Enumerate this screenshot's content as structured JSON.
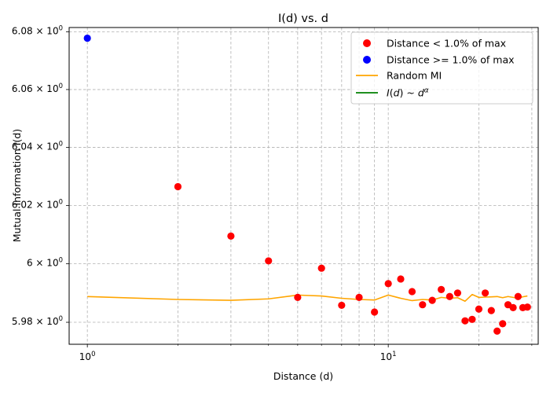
{
  "chart_data": {
    "type": "scatter",
    "title": "I(d) vs. d",
    "xlabel": "Distance (d)",
    "ylabel": "Mutual Information I(d)",
    "x_scale": "log",
    "y_scale": "log",
    "xlim": [
      0.87,
      31.5
    ],
    "ylim": [
      5.9725,
      6.0815
    ],
    "grid": true,
    "grid_which": "both",
    "legend_position": "top-right",
    "x_ticks": [
      {
        "value": 1,
        "label": "10",
        "exp": "0"
      },
      {
        "value": 10,
        "label": "10",
        "exp": "1"
      }
    ],
    "x_minor_ticks": [
      2,
      3,
      4,
      5,
      6,
      7,
      8,
      9,
      20,
      30
    ],
    "y_ticks": [
      {
        "value": 5.98,
        "label": "5.98 × 10",
        "exp": "0"
      },
      {
        "value": 6.0,
        "label": "6 × 10",
        "exp": "0"
      },
      {
        "value": 6.02,
        "label": "6.02 × 10",
        "exp": "0"
      },
      {
        "value": 6.04,
        "label": "6.04 × 10",
        "exp": "0"
      },
      {
        "value": 6.06,
        "label": "6.06 × 10",
        "exp": "0"
      },
      {
        "value": 6.08,
        "label": "6.08 × 10",
        "exp": "0"
      }
    ],
    "series": [
      {
        "name": "Distance < 1.0% of max",
        "kind": "scatter",
        "color": "#ff0000",
        "x": [
          2,
          3,
          4,
          5,
          6,
          7,
          8,
          9,
          10,
          11,
          12,
          13,
          14,
          15,
          16,
          17,
          18,
          19,
          20,
          21,
          22,
          23,
          24,
          25,
          26,
          27,
          28,
          29
        ],
        "y": [
          6.0265,
          6.0095,
          6.001,
          5.9885,
          5.9985,
          5.9858,
          5.9885,
          5.9835,
          5.9932,
          5.9948,
          5.9905,
          5.986,
          5.9875,
          5.9912,
          5.9888,
          5.99,
          5.9805,
          5.981,
          5.9845,
          5.99,
          5.984,
          5.977,
          5.9795,
          5.986,
          5.985,
          5.9888,
          5.985,
          5.9852
        ]
      },
      {
        "name": "Distance >= 1.0% of max",
        "kind": "scatter",
        "color": "#0000ff",
        "x": [
          1
        ],
        "y": [
          6.0778
        ]
      },
      {
        "name": "Random MI",
        "kind": "line",
        "color": "#ffa500",
        "x": [
          1,
          2,
          3,
          4,
          5,
          6,
          7,
          8,
          9,
          10,
          11,
          12,
          13,
          14,
          15,
          16,
          17,
          18,
          19,
          20,
          21,
          22,
          23,
          24,
          25,
          26,
          27,
          28,
          29
        ],
        "y": [
          5.9888,
          5.9878,
          5.9875,
          5.988,
          5.9893,
          5.989,
          5.9882,
          5.9878,
          5.9876,
          5.9893,
          5.9882,
          5.9874,
          5.9878,
          5.9876,
          5.9885,
          5.9882,
          5.9884,
          5.9872,
          5.9895,
          5.9885,
          5.9886,
          5.9887,
          5.9888,
          5.9884,
          5.9888,
          5.9885,
          5.9882,
          5.9887,
          5.989
        ]
      },
      {
        "name": "I(d) ~ d^α",
        "kind": "line",
        "color": "#008000",
        "x": [],
        "y": []
      }
    ]
  }
}
